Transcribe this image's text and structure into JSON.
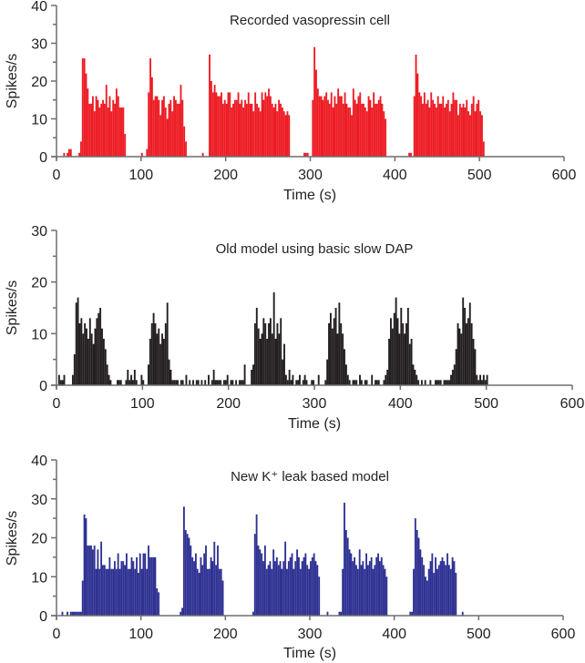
{
  "chart_data": [
    {
      "type": "bar",
      "title": "Recorded vasopressin cell",
      "xlabel": "Time (s)",
      "ylabel": "Spikes/s",
      "xlim": [
        0,
        600
      ],
      "ylim": [
        0,
        40
      ],
      "xticks": [
        "0",
        "100",
        "200",
        "300",
        "400",
        "500",
        "600"
      ],
      "yticks": [
        "0",
        "10",
        "20",
        "30",
        "40"
      ],
      "color": "#ed1c24",
      "bin_width_s": 2,
      "bins_start_s": 0,
      "values": [
        0,
        0,
        0,
        0,
        1,
        0,
        1,
        2,
        2,
        0,
        0,
        0,
        0,
        1,
        4,
        26,
        26,
        22,
        18,
        14,
        14,
        16,
        12,
        16,
        15,
        13,
        14,
        15,
        14,
        19,
        13,
        16,
        12,
        15,
        14,
        18,
        16,
        13,
        13,
        13,
        6,
        0,
        0,
        0,
        0,
        0,
        0,
        0,
        0,
        0,
        1,
        0,
        0,
        2,
        17,
        26,
        21,
        15,
        16,
        16,
        15,
        11,
        15,
        16,
        13,
        10,
        14,
        15,
        12,
        16,
        15,
        14,
        14,
        19,
        15,
        8,
        4,
        0,
        0,
        0,
        0,
        0,
        0,
        0,
        0,
        0,
        1,
        0,
        0,
        0,
        27,
        20,
        17,
        19,
        17,
        16,
        16,
        17,
        14,
        15,
        14,
        17,
        17,
        13,
        14,
        15,
        15,
        17,
        14,
        15,
        13,
        15,
        14,
        17,
        14,
        14,
        12,
        17,
        14,
        13,
        12,
        17,
        15,
        17,
        16,
        18,
        16,
        14,
        13,
        14,
        12,
        15,
        14,
        13,
        12,
        11,
        12,
        11,
        0,
        0,
        0,
        0,
        0,
        0,
        0,
        0,
        1,
        1,
        1,
        0,
        0,
        15,
        29,
        23,
        18,
        16,
        16,
        15,
        16,
        17,
        15,
        14,
        17,
        13,
        16,
        14,
        18,
        16,
        16,
        14,
        17,
        14,
        13,
        13,
        11,
        18,
        15,
        14,
        16,
        17,
        14,
        14,
        13,
        12,
        16,
        15,
        13,
        17,
        14,
        14,
        15,
        16,
        14,
        12,
        10,
        0,
        0,
        0,
        0,
        0,
        0,
        0,
        0,
        0,
        0,
        0,
        0,
        0,
        1,
        1,
        0,
        16,
        27,
        22,
        17,
        16,
        14,
        17,
        14,
        15,
        13,
        17,
        15,
        14,
        13,
        16,
        14,
        14,
        16,
        13,
        14,
        15,
        12,
        14,
        17,
        15,
        15,
        11,
        14,
        13,
        14,
        13,
        15,
        12,
        11,
        14,
        16,
        12,
        14,
        15,
        12,
        11,
        4,
        0,
        0,
        0,
        0,
        0,
        0,
        0,
        0,
        0,
        0,
        0,
        0,
        0,
        0
      ]
    },
    {
      "type": "bar",
      "title": "Old model using basic slow DAP",
      "xlabel": "Time (s)",
      "ylabel": "Spikes/s",
      "xlim": [
        0,
        600
      ],
      "ylim": [
        0,
        30
      ],
      "xticks": [
        "0",
        "100",
        "200",
        "300",
        "400",
        "500",
        "600"
      ],
      "yticks": [
        "0",
        "10",
        "20",
        "30"
      ],
      "color": "#231f20",
      "bin_width_s": 2,
      "bins_start_s": 0,
      "values": [
        0,
        2,
        1,
        1,
        2,
        0,
        0,
        0,
        0,
        2,
        6,
        16,
        17,
        12,
        13,
        10,
        12,
        11,
        9,
        13,
        10,
        8,
        11,
        13,
        14,
        15,
        11,
        9,
        7,
        4,
        2,
        1,
        0,
        0,
        0,
        1,
        1,
        1,
        0,
        0,
        1,
        3,
        1,
        2,
        1,
        3,
        1,
        0,
        0,
        2,
        1,
        0,
        0,
        4,
        9,
        12,
        14,
        12,
        10,
        11,
        8,
        10,
        9,
        12,
        16,
        5,
        3,
        1,
        1,
        1,
        1,
        0,
        1,
        1,
        0,
        2,
        0,
        1,
        0,
        1,
        0,
        1,
        1,
        0,
        1,
        0,
        1,
        0,
        2,
        0,
        1,
        3,
        1,
        1,
        1,
        1,
        0,
        1,
        1,
        2,
        0,
        1,
        1,
        0,
        1,
        0,
        1,
        1,
        1,
        4,
        0,
        0,
        0,
        3,
        4,
        12,
        15,
        11,
        9,
        10,
        13,
        12,
        9,
        12,
        13,
        10,
        18,
        9,
        12,
        10,
        13,
        5,
        8,
        2,
        1,
        3,
        1,
        2,
        0,
        1,
        1,
        2,
        0,
        1,
        2,
        1,
        0,
        0,
        1,
        1,
        0,
        0,
        2,
        0,
        0,
        0,
        1,
        5,
        12,
        14,
        11,
        13,
        15,
        10,
        16,
        12,
        10,
        7,
        4,
        2,
        1,
        0,
        1,
        1,
        1,
        0,
        2,
        1,
        0,
        1,
        1,
        0,
        0,
        2,
        0,
        1,
        1,
        1,
        0,
        0,
        1,
        2,
        3,
        9,
        13,
        11,
        14,
        17,
        13,
        10,
        15,
        12,
        10,
        12,
        15,
        8,
        9,
        4,
        3,
        2,
        1,
        0,
        1,
        0,
        1,
        0,
        0,
        1,
        0,
        0,
        1,
        1,
        1,
        1,
        0,
        1,
        1,
        1,
        1,
        2,
        3,
        4,
        7,
        12,
        11,
        10,
        17,
        15,
        12,
        13,
        16,
        12,
        9,
        7,
        2,
        1,
        2,
        1,
        2,
        1,
        2,
        0,
        0,
        0,
        0,
        0
      ]
    },
    {
      "type": "bar",
      "title": "New K⁺ leak based model",
      "xlabel": "Time (s)",
      "ylabel": "Spikes/s",
      "xlim": [
        0,
        600
      ],
      "ylim": [
        0,
        40
      ],
      "xticks": [
        "0",
        "100",
        "200",
        "300",
        "400",
        "500",
        "600"
      ],
      "yticks": [
        "0",
        "10",
        "20",
        "30",
        "40"
      ],
      "color": "#2e3192",
      "bin_width_s": 2,
      "bins_start_s": 0,
      "values": [
        0,
        0,
        0,
        1,
        0,
        0,
        1,
        0,
        1,
        1,
        1,
        1,
        1,
        1,
        1,
        9,
        26,
        25,
        18,
        18,
        18,
        17,
        18,
        12,
        17,
        12,
        19,
        13,
        13,
        12,
        12,
        15,
        12,
        12,
        14,
        12,
        16,
        12,
        14,
        14,
        13,
        16,
        12,
        12,
        15,
        14,
        12,
        15,
        11,
        16,
        12,
        16,
        16,
        12,
        18,
        15,
        15,
        15,
        15,
        7,
        6,
        0,
        0,
        0,
        0,
        0,
        0,
        0,
        0,
        0,
        0,
        0,
        0,
        1,
        2,
        28,
        22,
        21,
        20,
        18,
        15,
        14,
        16,
        12,
        11,
        15,
        13,
        16,
        18,
        12,
        12,
        15,
        14,
        19,
        13,
        18,
        12,
        12,
        9,
        0,
        0,
        0,
        0,
        0,
        0,
        0,
        0,
        0,
        0,
        0,
        0,
        0,
        0,
        0,
        0,
        0,
        1,
        21,
        26,
        18,
        17,
        16,
        14,
        18,
        12,
        13,
        14,
        12,
        17,
        14,
        15,
        13,
        14,
        12,
        14,
        19,
        12,
        14,
        15,
        16,
        12,
        14,
        17,
        15,
        12,
        14,
        15,
        16,
        13,
        12,
        14,
        15,
        16,
        14,
        13,
        10,
        0,
        0,
        0,
        0,
        1,
        0,
        0,
        0,
        0,
        0,
        0,
        1,
        1,
        12,
        29,
        22,
        20,
        17,
        16,
        14,
        15,
        13,
        12,
        17,
        13,
        14,
        12,
        16,
        13,
        14,
        15,
        12,
        13,
        15,
        16,
        14,
        15,
        13,
        12,
        10,
        0,
        0,
        0,
        0,
        0,
        0,
        0,
        0,
        0,
        0,
        0,
        0,
        0,
        1,
        1,
        12,
        25,
        22,
        20,
        17,
        15,
        13,
        10,
        9,
        12,
        14,
        16,
        11,
        15,
        12,
        13,
        14,
        15,
        14,
        13,
        16,
        13,
        12,
        15,
        14,
        11,
        0,
        0,
        0,
        1,
        0,
        0,
        0,
        0,
        0,
        0,
        0,
        0,
        0,
        0,
        0,
        0,
        0,
        0
      ]
    }
  ]
}
